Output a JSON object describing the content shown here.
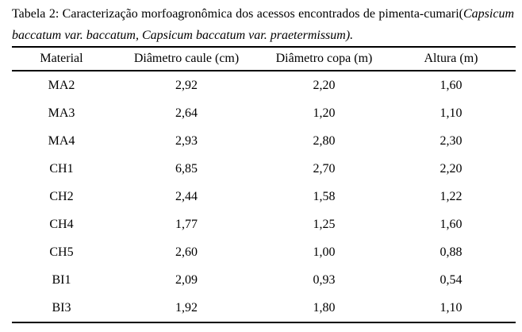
{
  "page": {
    "background_color": "#ffffff",
    "text_color": "#000000",
    "rule_color": "#000000"
  },
  "caption": {
    "line1_regular": "Tabela 2: Caracterização morfoagronômica dos acessos encontrados de pimenta-cumari(",
    "line1_italic": "Capsicum",
    "line2_italic": "baccatum var. baccatum, Capsicum baccatum var. praetermissum)."
  },
  "table": {
    "columns": [
      "Material",
      "Diâmetro caule (cm)",
      "Diâmetro copa (m)",
      "Altura (m)"
    ],
    "rows": [
      [
        "MA2",
        "2,92",
        "2,20",
        "1,60"
      ],
      [
        "MA3",
        "2,64",
        "1,20",
        "1,10"
      ],
      [
        "MA4",
        "2,93",
        "2,80",
        "2,30"
      ],
      [
        "CH1",
        "6,85",
        "2,70",
        "2,20"
      ],
      [
        "CH2",
        "2,44",
        "1,58",
        "1,22"
      ],
      [
        "CH4",
        "1,77",
        "1,25",
        "1,60"
      ],
      [
        "CH5",
        "2,60",
        "1,00",
        "0,88"
      ],
      [
        "BI1",
        "2,09",
        "0,93",
        "0,54"
      ],
      [
        "BI3",
        "1,92",
        "1,80",
        "1,10"
      ]
    ]
  }
}
